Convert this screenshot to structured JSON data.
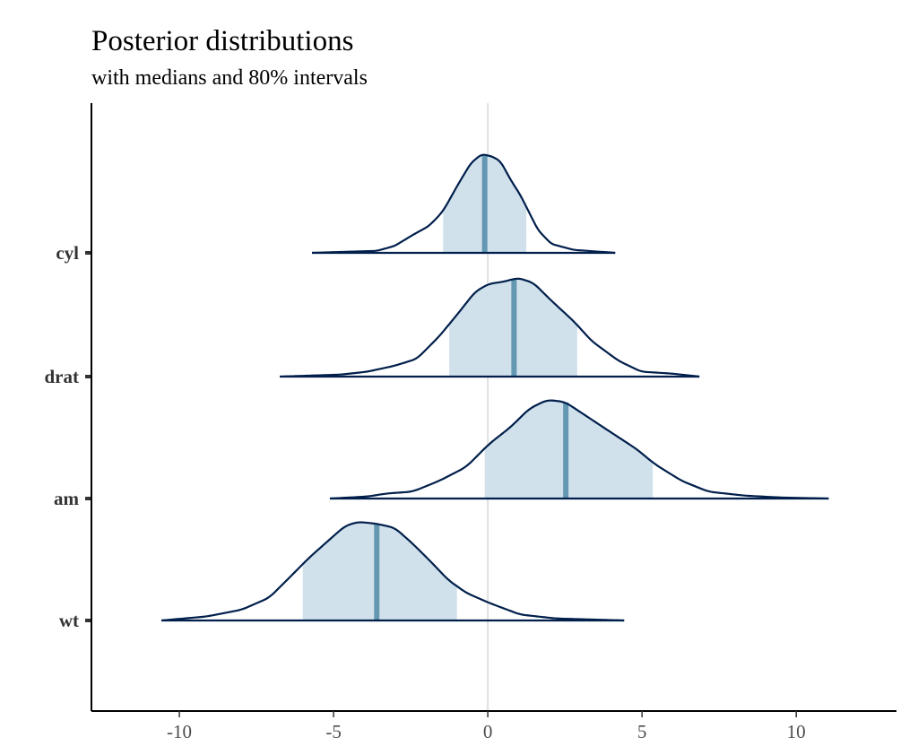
{
  "chart_data": {
    "type": "area",
    "title": "Posterior distributions",
    "subtitle": "with medians and 80% intervals",
    "xlabel": "",
    "ylabel": "",
    "xlim": [
      -12.85,
      13.25
    ],
    "x_ticks": [
      -10,
      -5,
      0,
      5,
      10
    ],
    "x_tick_labels": [
      "-10",
      "-5",
      "0",
      "5",
      "10"
    ],
    "reference_line_x": 0,
    "grid": false,
    "colors": {
      "outline": "#011f4b",
      "interval_fill": "#d1e1ec",
      "median": "#6497b1",
      "reference": "#e0e0e0",
      "axis": "#000000"
    },
    "series": [
      {
        "name": "cyl",
        "median": -0.1,
        "interval80": [
          -1.45,
          1.25
        ],
        "x": [
          -5.7,
          -3.6,
          -3.02,
          -2.44,
          -1.92,
          -1.57,
          -1.4,
          -0.99,
          -0.55,
          -0.2,
          0.12,
          0.41,
          0.76,
          1.05,
          1.34,
          1.63,
          2.06,
          2.79,
          4.13
        ],
        "density": [
          0,
          0.02,
          0.07,
          0.18,
          0.27,
          0.38,
          0.45,
          0.68,
          0.91,
          1.0,
          0.98,
          0.93,
          0.73,
          0.59,
          0.41,
          0.23,
          0.09,
          0.03,
          0
        ]
      },
      {
        "name": "drat",
        "median": 0.85,
        "interval80": [
          -1.25,
          2.9
        ],
        "x": [
          -6.74,
          -4.77,
          -3.9,
          -3.02,
          -2.3,
          -1.57,
          -0.99,
          -0.41,
          0.03,
          0.47,
          0.99,
          1.48,
          2.06,
          2.79,
          3.37,
          4.24,
          4.97,
          5.99,
          6.86
        ],
        "density": [
          0,
          0.02,
          0.05,
          0.11,
          0.18,
          0.41,
          0.63,
          0.86,
          0.94,
          0.96,
          1.0,
          0.95,
          0.77,
          0.56,
          0.36,
          0.16,
          0.05,
          0.03,
          0
        ]
      },
      {
        "name": "am",
        "median": 2.53,
        "interval80": [
          -0.1,
          5.35
        ],
        "x": [
          -5.12,
          -3.9,
          -3.31,
          -2.44,
          -1.57,
          -0.7,
          0.03,
          0.76,
          1.34,
          1.92,
          2.5,
          3.08,
          3.95,
          4.83,
          5.41,
          6.28,
          7.15,
          8.31,
          9.48,
          11.05
        ],
        "density": [
          0,
          0.02,
          0.05,
          0.07,
          0.18,
          0.32,
          0.55,
          0.73,
          0.91,
          1.0,
          0.98,
          0.86,
          0.68,
          0.5,
          0.35,
          0.18,
          0.07,
          0.03,
          0.01,
          0
        ]
      },
      {
        "name": "wt",
        "median": -3.6,
        "interval80": [
          -6.0,
          -1.0
        ],
        "x": [
          -10.58,
          -9.13,
          -7.97,
          -7.09,
          -6.51,
          -5.78,
          -5.06,
          -4.62,
          -4.19,
          -3.6,
          -3.02,
          -2.44,
          -1.86,
          -1.28,
          -0.7,
          0.03,
          1.05,
          2.21,
          4.42
        ],
        "density": [
          0,
          0.04,
          0.11,
          0.23,
          0.41,
          0.64,
          0.84,
          0.96,
          1.0,
          0.98,
          0.94,
          0.78,
          0.6,
          0.41,
          0.28,
          0.18,
          0.06,
          0.02,
          0
        ]
      }
    ]
  }
}
